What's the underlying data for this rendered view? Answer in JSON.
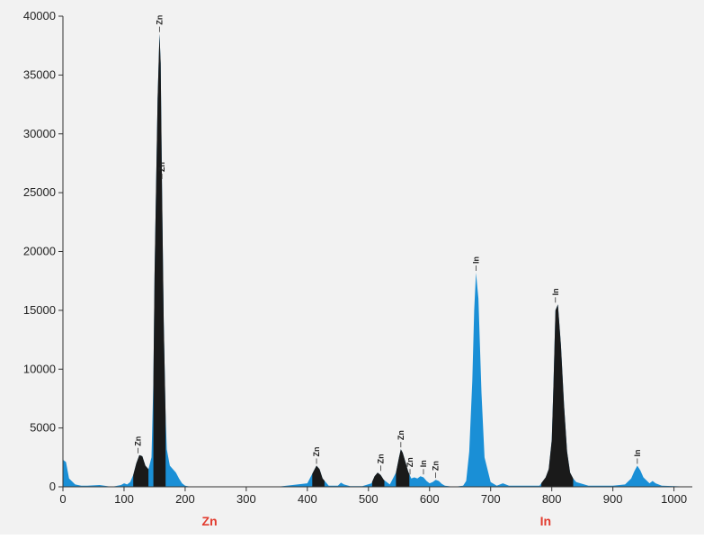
{
  "chart_data": {
    "type": "area",
    "title": "",
    "xlabel": "",
    "ylabel": "",
    "xlim": [
      0,
      1030
    ],
    "ylim": [
      0,
      40000
    ],
    "x_ticks": [
      0,
      100,
      200,
      300,
      400,
      500,
      600,
      700,
      800,
      900,
      1000
    ],
    "y_ticks": [
      0,
      5000,
      10000,
      15000,
      20000,
      25000,
      30000,
      35000,
      40000
    ],
    "grid": false,
    "colors": {
      "spectrum": "#1a8fd6",
      "peaks": "#1a1a1a",
      "element_labels": "#e23b2e",
      "background": "#f2f2f2"
    },
    "series": [
      {
        "x": [
          0,
          5,
          10,
          20,
          30,
          40,
          60,
          80,
          95,
          100,
          105,
          110,
          115,
          120,
          125,
          130,
          135,
          140,
          145,
          148,
          150,
          155,
          158,
          160,
          162,
          165,
          168,
          170,
          175,
          180,
          185,
          190,
          195,
          200,
          210,
          250,
          300,
          350,
          400,
          410,
          415,
          420,
          425,
          435,
          450,
          455,
          460,
          470,
          490,
          505,
          510,
          515,
          520,
          525,
          535,
          545,
          550,
          553,
          556,
          560,
          565,
          570,
          575,
          580,
          585,
          590,
          595,
          600,
          605,
          610,
          615,
          620,
          625,
          640,
          655,
          660,
          665,
          670,
          673,
          676,
          680,
          685,
          690,
          700,
          710,
          720,
          730,
          750,
          780,
          790,
          795,
          800,
          803,
          806,
          810,
          815,
          820,
          825,
          830,
          835,
          840,
          860,
          900,
          920,
          930,
          935,
          940,
          945,
          950,
          960,
          965,
          970,
          980,
          1000,
          1030
        ],
        "y": [
          2300,
          2100,
          700,
          200,
          100,
          100,
          150,
          0,
          150,
          300,
          200,
          400,
          1000,
          2000,
          2700,
          2600,
          1800,
          1500,
          2500,
          9000,
          18000,
          33000,
          38500,
          36000,
          26000,
          14000,
          6000,
          3200,
          1800,
          1500,
          1200,
          700,
          300,
          100,
          0,
          0,
          0,
          0,
          300,
          1300,
          1800,
          1500,
          700,
          100,
          100,
          350,
          200,
          50,
          50,
          300,
          900,
          1200,
          1000,
          600,
          200,
          1200,
          2500,
          3200,
          2900,
          2200,
          1300,
          700,
          800,
          700,
          900,
          800,
          500,
          300,
          400,
          600,
          500,
          250,
          100,
          0,
          100,
          500,
          3000,
          9000,
          15000,
          18200,
          16000,
          8000,
          2500,
          400,
          100,
          300,
          100,
          100,
          100,
          800,
          1500,
          4000,
          9000,
          15000,
          15500,
          12000,
          7000,
          3000,
          1200,
          700,
          400,
          100,
          100,
          200,
          700,
          1300,
          1800,
          1400,
          800,
          300,
          500,
          300,
          100,
          50,
          0
        ]
      }
    ],
    "highlighted_regions": [
      [
        115,
        140
      ],
      [
        148,
        168
      ],
      [
        408,
        428
      ],
      [
        506,
        526
      ],
      [
        545,
        567
      ],
      [
        783,
        835
      ]
    ],
    "element_labels": [
      {
        "label": "Zn",
        "x": 240
      },
      {
        "label": "In",
        "x": 790
      }
    ],
    "peak_labels": [
      {
        "label": "Zn",
        "x": 123,
        "y": 2700
      },
      {
        "label": "Zn",
        "x": 158,
        "y": 38500
      },
      {
        "label": "Zn",
        "x": 162,
        "y": 26000
      },
      {
        "label": "Zn",
        "x": 415,
        "y": 1800
      },
      {
        "label": "Zn",
        "x": 520,
        "y": 1200
      },
      {
        "label": "Zn",
        "x": 553,
        "y": 3200
      },
      {
        "label": "Zn",
        "x": 568,
        "y": 900
      },
      {
        "label": "In",
        "x": 590,
        "y": 900
      },
      {
        "label": "Zn",
        "x": 610,
        "y": 600
      },
      {
        "label": "In",
        "x": 676,
        "y": 18200
      },
      {
        "label": "In",
        "x": 806,
        "y": 15500
      },
      {
        "label": "In",
        "x": 940,
        "y": 1800
      }
    ]
  }
}
